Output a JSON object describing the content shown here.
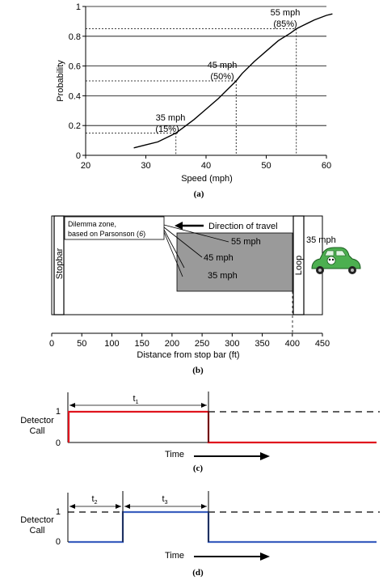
{
  "panel_a": {
    "caption": "(a)",
    "xlabel": "Speed (mph)",
    "ylabel": "Probability",
    "x_ticks": [
      "20",
      "30",
      "40",
      "50",
      "60"
    ],
    "y_ticks": [
      "0",
      "0.2",
      "0.4",
      "0.6",
      "0.8",
      "1"
    ],
    "annotations": [
      {
        "speed": "35 mph",
        "pct": "(15%)"
      },
      {
        "speed": "45 mph",
        "pct": "(50%)"
      },
      {
        "speed": "55 mph",
        "pct": "(85%)"
      }
    ]
  },
  "chart_data": {
    "type": "line",
    "xlabel": "Speed (mph)",
    "ylabel": "Probability",
    "xlim": [
      20,
      60
    ],
    "ylim": [
      0,
      1
    ],
    "x": [
      28,
      30,
      32,
      34,
      35,
      36,
      38,
      40,
      42,
      44,
      45,
      46,
      48,
      50,
      52,
      54,
      55,
      56,
      58,
      60,
      61
    ],
    "series": [
      {
        "values": [
          0.05,
          0.07,
          0.09,
          0.13,
          0.15,
          0.18,
          0.24,
          0.31,
          0.38,
          0.46,
          0.5,
          0.55,
          0.63,
          0.7,
          0.77,
          0.82,
          0.85,
          0.87,
          0.91,
          0.94,
          0.95
        ]
      }
    ],
    "markers": [
      {
        "x": 35,
        "y": 0.15
      },
      {
        "x": 45,
        "y": 0.5
      },
      {
        "x": 55,
        "y": 0.85
      }
    ]
  },
  "panel_b": {
    "caption": "(b)",
    "stopbar_label": "Stopbar",
    "loop_label": "Loop",
    "loop_speed": "35 mph",
    "dilemma_line1": "Dilemma zone,",
    "dilemma_line2": "based on Parsonson (",
    "dilemma_ref": "6",
    "dilemma_close": ")",
    "direction": "Direction of travel",
    "speeds": [
      "55 mph",
      "45 mph",
      "35 mph"
    ],
    "xlabel": "Distance from stop bar (ft)",
    "x_ticks": [
      "0",
      "50",
      "100",
      "150",
      "200",
      "250",
      "300",
      "350",
      "400",
      "450"
    ],
    "xlim": [
      0,
      450
    ],
    "dilemma_zone_ft": [
      210,
      360
    ],
    "stopbar_ft": 15,
    "loop_ft": 400
  },
  "panel_c": {
    "caption": "(c)",
    "ylabel_line1": "Detector",
    "ylabel_line2": "Call",
    "y_high": "1",
    "y_low": "0",
    "t_label": "t",
    "t_sub": "1",
    "time_label": "Time",
    "color": "#e0141e"
  },
  "panel_d": {
    "caption": "(d)",
    "ylabel_line1": "Detector",
    "ylabel_line2": "Call",
    "y_high": "1",
    "y_low": "0",
    "t2_label": "t",
    "t2_sub": "2",
    "t3_label": "t",
    "t3_sub": "3",
    "time_label": "Time",
    "color": "#3b5fbf"
  }
}
